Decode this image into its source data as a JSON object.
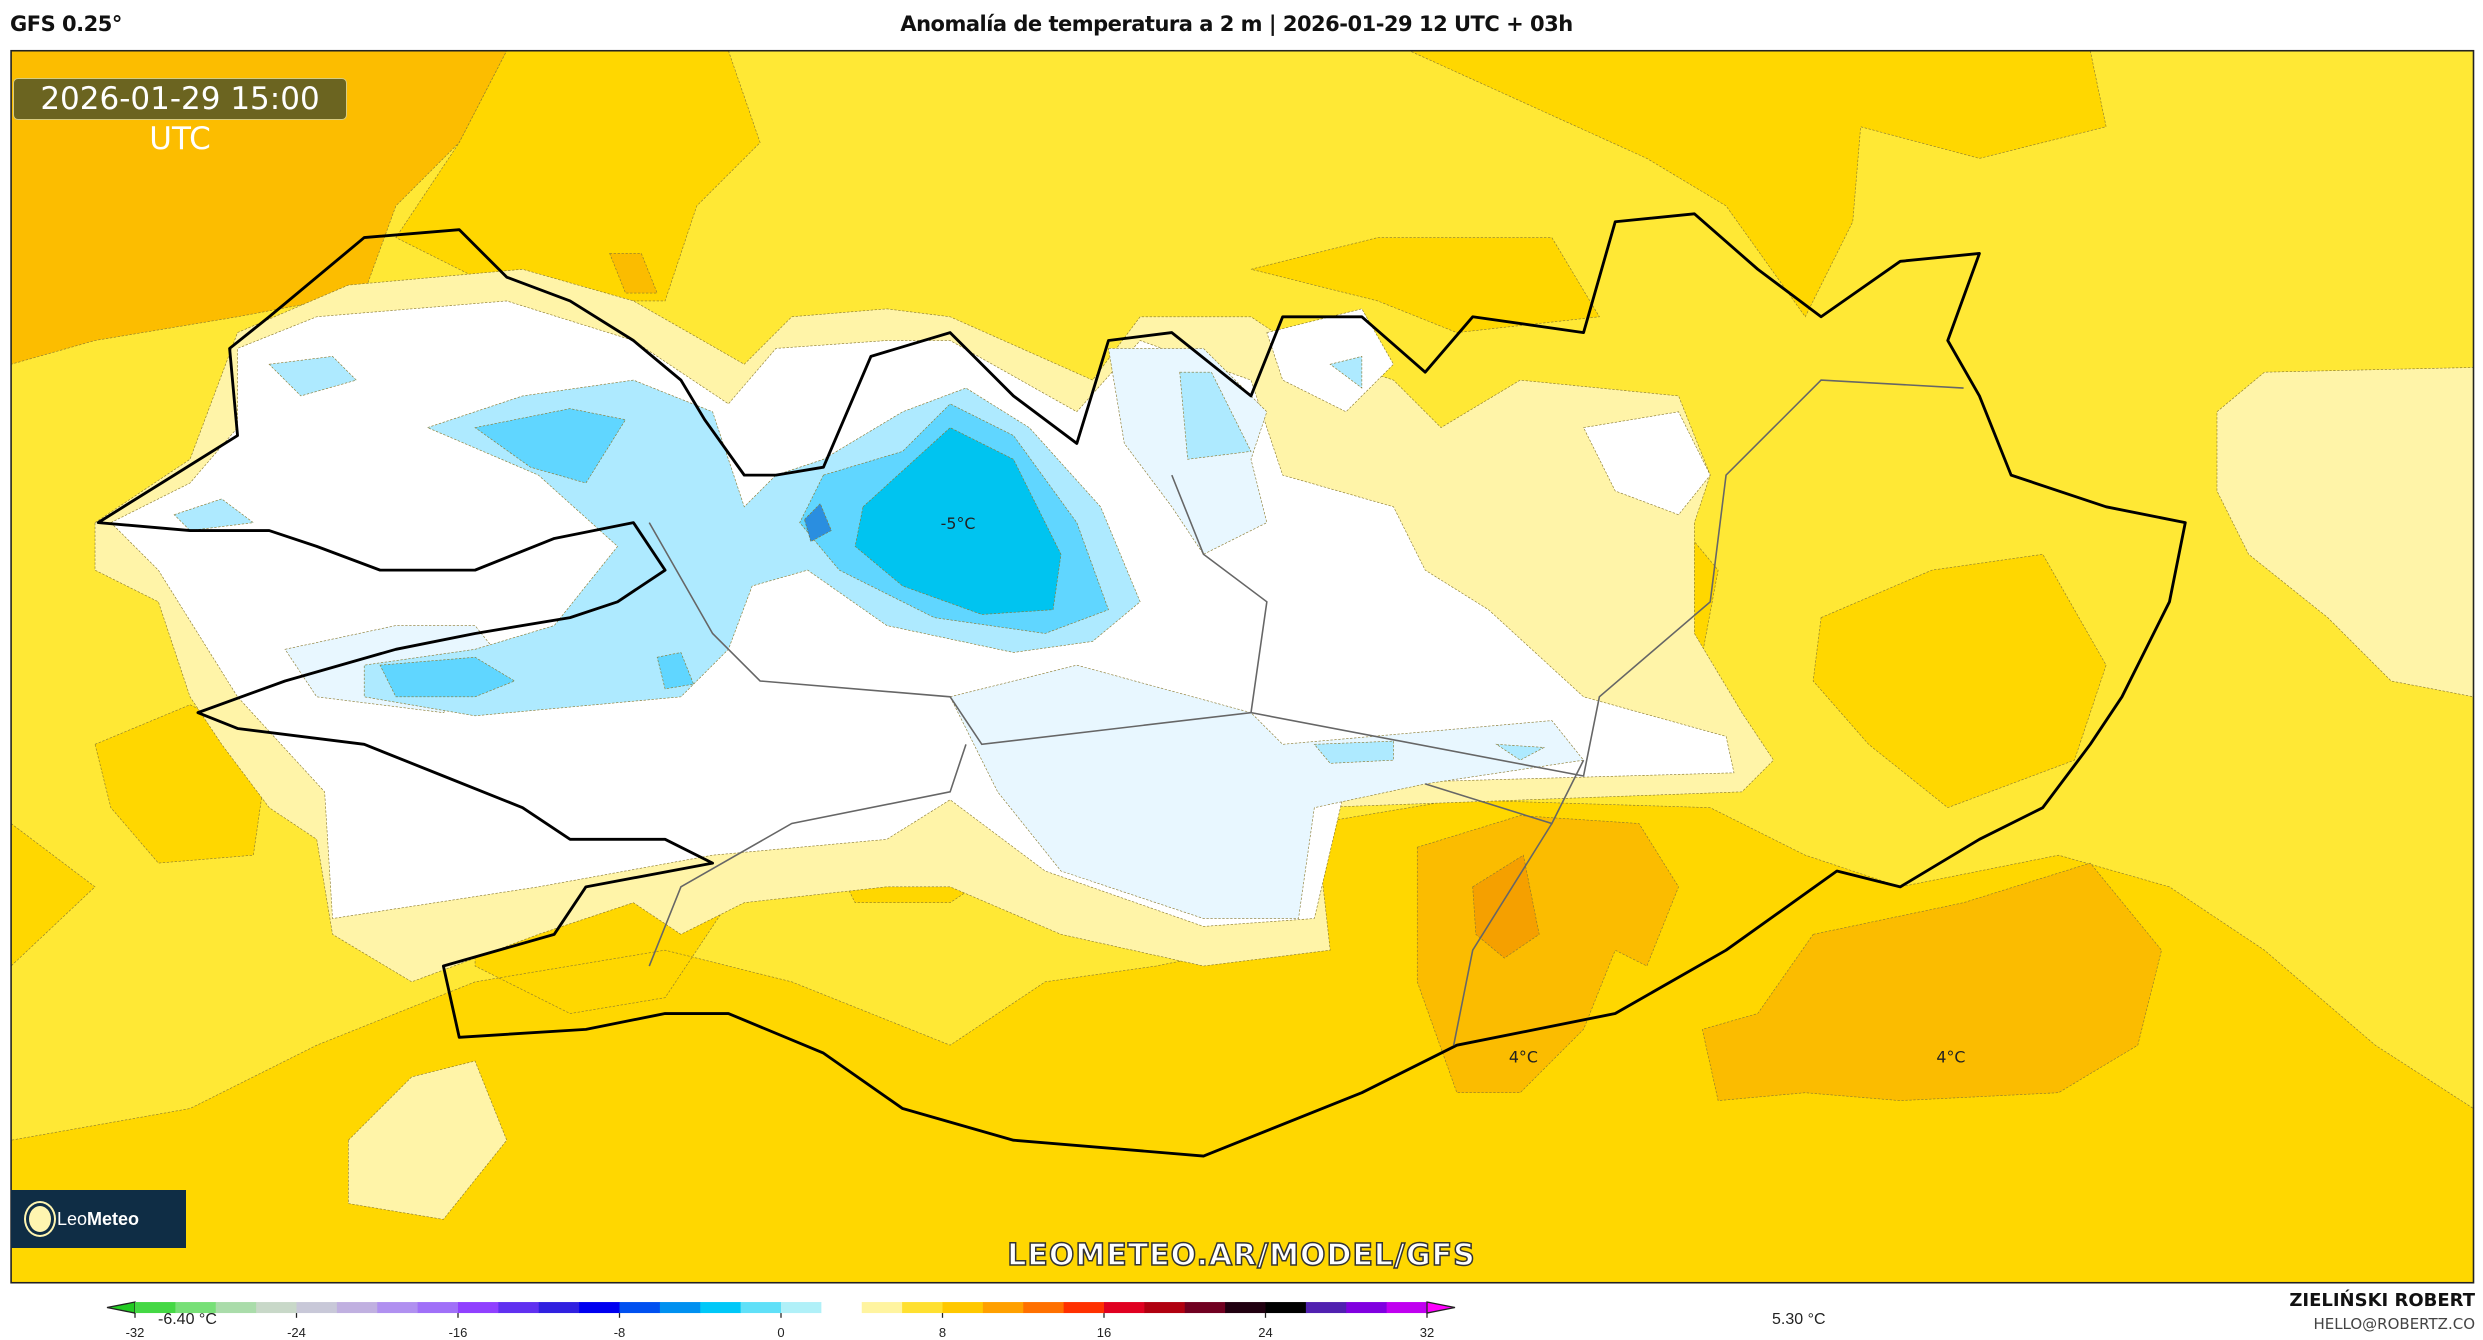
{
  "header": {
    "model": "GFS 0.25°",
    "title": "Anomalía de temperatura a 2 m | 2026-01-29 12 UTC + 03h"
  },
  "map": {
    "valid_time": "2026-01-29 15:00 UTC",
    "labels": [
      {
        "text": "-5°C"
      },
      {
        "text": "4°C"
      },
      {
        "text": "4°C"
      }
    ],
    "watermark": "LEOMETEO.AR/MODEL/GFS",
    "logo": {
      "text_a": "Leo",
      "text_b": "Meteo"
    }
  },
  "colorbar": {
    "min_label": "-6.40 °C",
    "max_label": "5.30 °C",
    "ticks": [
      "-32",
      "-24",
      "-16",
      "-8",
      "0",
      "8",
      "16",
      "24",
      "32"
    ],
    "colors": [
      "#22cc22",
      "#44d844",
      "#77e077",
      "#aadcaa",
      "#c8d8c8",
      "#c8c8d8",
      "#c0b0e0",
      "#b090f0",
      "#a070f8",
      "#9040ff",
      "#6030f0",
      "#3020e0",
      "#0000f0",
      "#0050f0",
      "#0090f0",
      "#00c8f8",
      "#60e0f8",
      "#b0f0f8",
      "#ffffff",
      "#fff4a0",
      "#ffe030",
      "#ffc800",
      "#ffa000",
      "#ff7000",
      "#ff3000",
      "#e00020",
      "#b00010",
      "#700020",
      "#200010",
      "#000000",
      "#5020b0",
      "#8000e0",
      "#c000f0",
      "#ff00ff"
    ]
  },
  "credit": {
    "name": "ZIELIŃSKI ROBERT",
    "email": "HELLO@ROBERTZ.CO"
  }
}
